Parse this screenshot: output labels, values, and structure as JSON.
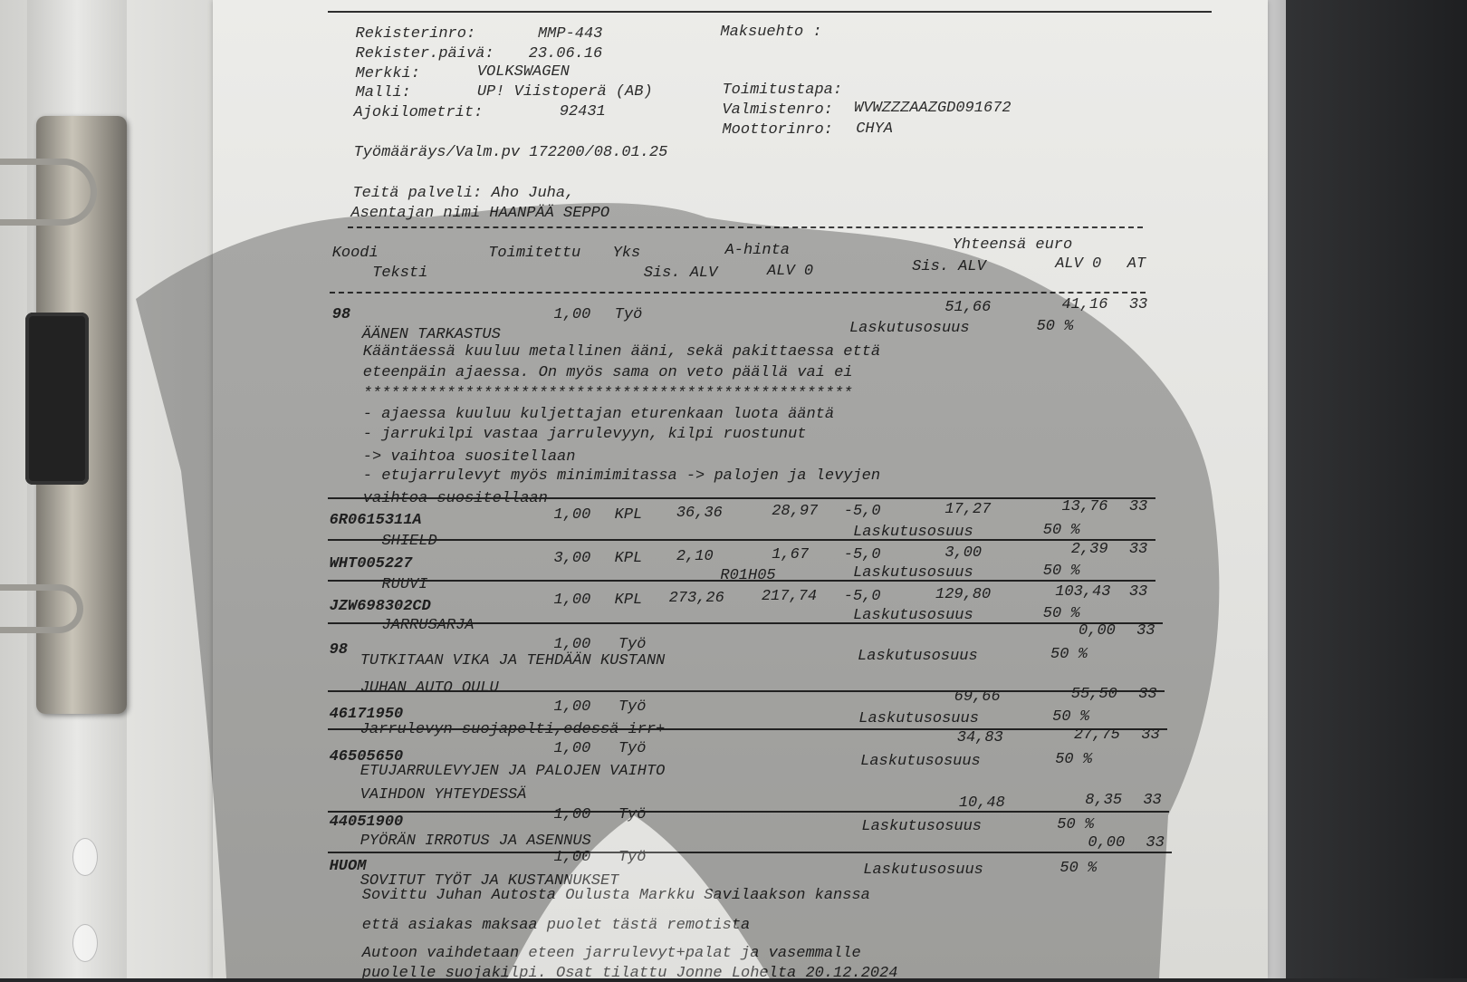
{
  "vehicle": {
    "reg_label": "Rekisterinro:",
    "reg": "MMP-443",
    "payment_label": "Maksuehto :",
    "reg_date_label": "Rekister.päivä:",
    "reg_date": "23.06.16",
    "make_label": "Merkki:",
    "make": "VOLKSWAGEN",
    "model_label": "Malli:",
    "model": "UP! Viistoperä (AB)",
    "delivery_label": "Toimitustapa:",
    "mileage_label": "Ajokilometrit:",
    "mileage": "92431",
    "vin_label": "Valmistenro:",
    "vin": "WVWZZZAAZGD091672",
    "engine_label": "Moottorinro:",
    "engine": "CHYA",
    "work_order": "Työmääräys/Valm.pv 172200/08.01.25",
    "served_by": "Teitä palveli: Aho Juha,",
    "mechanic": "Asentajan nimi HAANPÄÄ SEPPO"
  },
  "columns": {
    "code": "Koodi",
    "delivered": "Toimitettu",
    "unit": "Yks",
    "unit_price": "A-hinta",
    "total": "Yhteensä euro",
    "text": "Teksti",
    "incl_vat": "Sis. ALV",
    "excl_vat": "ALV 0",
    "total_incl": "Sis. ALV",
    "total_excl": "ALV 0",
    "at": "AT"
  },
  "items": [
    {
      "code": "98",
      "qty": "1,00",
      "unit": "Työ",
      "total_incl": "51,66",
      "total_excl": "41,16",
      "at": "33",
      "text": "ÄÄNEN TARKASTUS",
      "share_label": "Laskutusosuus",
      "share": "50 %",
      "notes": [
        "Kääntäessä kuuluu metallinen ääni, sekä pakittaessa että",
        "eteenpäin ajaessa. On myös sama on veto päällä vai ei",
        "*****************************************************",
        "- ajaessa kuuluu kuljettajan eturenkaan luota ääntä",
        "- jarrukilpi vastaa jarrulevyyn, kilpi ruostunut",
        "-> vaihtoa suositellaan",
        "- etujarrulevyt myös minimimitassa -> palojen ja levyjen",
        "vaihtoa suositellaan"
      ]
    },
    {
      "code": "6R0615311A",
      "qty": "1,00",
      "unit": "KPL",
      "unit_incl": "36,36",
      "unit_excl": "28,97",
      "discount": "-5,0",
      "total_incl": "17,27",
      "total_excl": "13,76",
      "at": "33",
      "text": "SHIELD",
      "share_label": "Laskutusosuus",
      "share": "50 %"
    },
    {
      "code": "WHT005227",
      "qty": "3,00",
      "unit": "KPL",
      "unit_incl": "2,10",
      "unit_excl": "1,67",
      "discount": "-5,0",
      "total_incl": "3,00",
      "total_excl": "2,39",
      "at": "33",
      "text": "RUUVI",
      "location": "R01H05",
      "share_label": "Laskutusosuus",
      "share": "50 %"
    },
    {
      "code": "JZW698302CD",
      "qty": "1,00",
      "unit": "KPL",
      "unit_incl": "273,26",
      "unit_excl": "217,74",
      "discount": "-5,0",
      "total_incl": "129,80",
      "total_excl": "103,43",
      "at": "33",
      "text": "JARRUSARJA",
      "share_label": "Laskutusosuus",
      "share": "50 %"
    },
    {
      "code": "98",
      "qty": "1,00",
      "unit": "Työ",
      "total_excl": "0,00",
      "at": "33",
      "text": "TUTKITAAN VIKA JA TEHDÄÄN KUSTANN",
      "text2": "JUHAN AUTO OULU",
      "share_label": "Laskutusosuus",
      "share": "50 %"
    },
    {
      "code": "46171950",
      "qty": "1,00",
      "unit": "Työ",
      "total_incl": "69,66",
      "total_excl": "55,50",
      "at": "33",
      "text": "Jarrulevyn suojapelti,edessä irr+",
      "share_label": "Laskutusosuus",
      "share": "50 %"
    },
    {
      "code": "46505650",
      "qty": "1,00",
      "unit": "Työ",
      "total_incl": "34,83",
      "total_excl": "27,75",
      "at": "33",
      "text": "ETUJARRULEVYJEN JA PALOJEN VAIHTO",
      "text2": "VAIHDON YHTEYDESSÄ",
      "share_label": "Laskutusosuus",
      "share": "50 %"
    },
    {
      "code": "44051900",
      "qty": "1,00",
      "unit": "Työ",
      "total_incl": "10,48",
      "total_excl": "8,35",
      "at": "33",
      "text": "PYÖRÄN IRROTUS JA ASENNUS",
      "share_label": "Laskutusosuus",
      "share": "50 %"
    },
    {
      "code": "HUOM",
      "qty": "1,00",
      "unit": "Työ",
      "total_excl": "0,00",
      "at": "33",
      "text": "SOVITUT TYÖT JA KUSTANNUKSET",
      "share_label": "Laskutusosuus",
      "share": "50 %",
      "notes": [
        "Sovittu Juhan Autosta Oulusta Markku Savilaakson kanssa",
        "että asiakas maksaa puolet tästä remotista",
        "Autoon vaihdetaan eteen jarrulevyt+palat ja vasemmalle",
        "puolelle suojakilpi. Osat tilattu Jonne Lohelta 20.12.2024"
      ]
    }
  ],
  "colors": {
    "paper": "#e6e6e3",
    "ink": "#2c2c2c",
    "background": "#262729"
  }
}
